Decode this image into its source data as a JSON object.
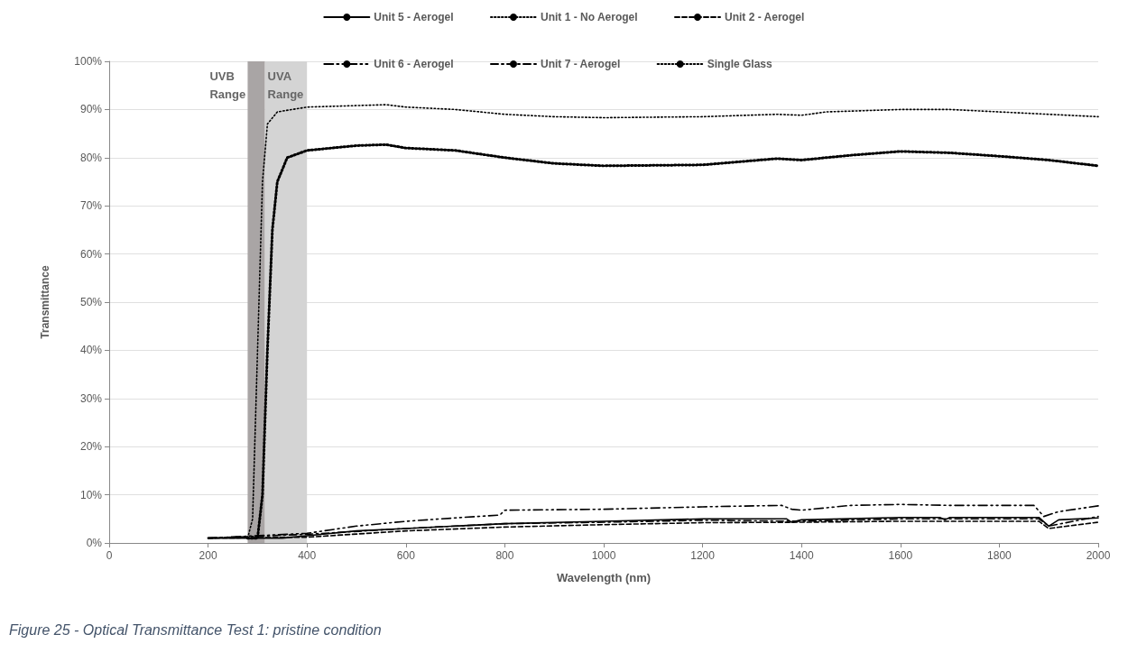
{
  "chart_data": {
    "type": "line",
    "xlabel": "Wavelength (nm)",
    "ylabel": "Transmittance",
    "annotations": [
      "Figure 25 - Optical Transmittance Test 1: pristine condition"
    ],
    "xlim": [
      0,
      2000
    ],
    "xticks": [
      0,
      200,
      400,
      600,
      800,
      1000,
      1200,
      1400,
      1600,
      1800,
      2000
    ],
    "ylim": [
      0,
      100
    ],
    "yticks": [
      {
        "value": 0,
        "label": "0%"
      },
      {
        "value": 10,
        "label": "10%"
      },
      {
        "value": 20,
        "label": "20%"
      },
      {
        "value": 30,
        "label": "30%"
      },
      {
        "value": 40,
        "label": "40%"
      },
      {
        "value": 50,
        "label": "50%"
      },
      {
        "value": 60,
        "label": "60%"
      },
      {
        "value": 70,
        "label": "70%"
      },
      {
        "value": 80,
        "label": "80%"
      },
      {
        "value": 90,
        "label": "90%"
      },
      {
        "value": 100,
        "label": "100%"
      }
    ],
    "grid": "y",
    "legend": "top",
    "marker": "none",
    "bands": [
      {
        "axis": "x",
        "from": 280,
        "to": 315,
        "label": "UVB\nRange",
        "color": "#a9a5a5"
      },
      {
        "axis": "x",
        "from": 315,
        "to": 400,
        "label": "UVA\nRange",
        "color": "#d4d4d4"
      }
    ],
    "series": [
      {
        "name": "Unit 5 - Aerogel",
        "color": "#000000",
        "line_style": "solid",
        "x": [
          200,
          350,
          400,
          500,
          600,
          700,
          800,
          1000,
          1200,
          1370,
          1380,
          1400,
          1600,
          1680,
          1690,
          1700,
          1880,
          1900,
          1920,
          2000
        ],
        "values": [
          1,
          1,
          1.5,
          2.5,
          3,
          3.5,
          4,
          4.5,
          5,
          5,
          4.3,
          4.8,
          5.3,
          5.3,
          4.8,
          5.3,
          5.3,
          3.5,
          4.8,
          5.2
        ]
      },
      {
        "name": "Unit 1 - No Aerogel",
        "color": "#000000",
        "line_style": "dotted",
        "x": [
          280,
          300,
          310,
          320,
          330,
          340,
          360,
          400,
          500,
          560,
          600,
          700,
          800,
          900,
          1000,
          1200,
          1350,
          1400,
          1500,
          1600,
          1700,
          1800,
          1900,
          2000
        ],
        "values": [
          1,
          1,
          10,
          40,
          65,
          75,
          80,
          81.5,
          82.5,
          82.7,
          82,
          81.5,
          80,
          78.8,
          78.3,
          78.5,
          79.8,
          79.5,
          80.5,
          81.3,
          81,
          80.3,
          79.5,
          78.3
        ]
      },
      {
        "name": "Unit 2 - Aerogel",
        "color": "#000000",
        "line_style": "dashed",
        "x": [
          200,
          400,
          600,
          800,
          1000,
          1200,
          1400,
          1600,
          1880,
          1900,
          2000
        ],
        "values": [
          1,
          1.2,
          2.5,
          3.3,
          3.8,
          4.2,
          4.3,
          4.5,
          4.5,
          3,
          4.3
        ]
      },
      {
        "name": "Unit 6 - Aerogel",
        "color": "#000000",
        "line_style": "dashdotdot",
        "x": [
          200,
          400,
          500,
          600,
          700,
          790,
          800,
          1000,
          1200,
          1360,
          1380,
          1400,
          1500,
          1600,
          1700,
          1870,
          1890,
          1920,
          2000
        ],
        "values": [
          1,
          2,
          3.5,
          4.5,
          5.2,
          5.8,
          6.8,
          7,
          7.5,
          7.8,
          7,
          6.8,
          7.8,
          8,
          7.8,
          7.8,
          5.5,
          6.5,
          7.7
        ]
      },
      {
        "name": "Unit 7 - Aerogel",
        "color": "#000000",
        "line_style": "dashdot",
        "x": [
          200,
          400,
          600,
          800,
          1000,
          1200,
          1400,
          1600,
          1880,
          1900,
          2000
        ],
        "values": [
          1,
          1.8,
          3,
          4,
          4.3,
          4.7,
          4.5,
          5,
          5,
          3.5,
          5.5
        ]
      },
      {
        "name": "Single Glass",
        "color": "#000000",
        "line_style": "dotted",
        "x": [
          280,
          290,
          300,
          310,
          320,
          340,
          400,
          560,
          600,
          700,
          800,
          900,
          1000,
          1200,
          1350,
          1400,
          1450,
          1600,
          1700,
          1800,
          1900,
          2000
        ],
        "values": [
          1,
          5,
          40,
          75,
          87,
          89.5,
          90.5,
          91,
          90.5,
          90,
          89,
          88.5,
          88.3,
          88.5,
          89,
          88.8,
          89.5,
          90,
          90,
          89.5,
          89,
          88.5
        ]
      }
    ]
  }
}
